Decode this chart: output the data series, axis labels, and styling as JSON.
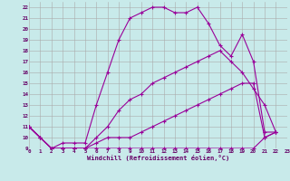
{
  "xlabel": "Windchill (Refroidissement éolien,°C)",
  "bg_color": "#c8eaea",
  "line_color": "#990099",
  "xlim": [
    0,
    23
  ],
  "ylim": [
    9,
    22.5
  ],
  "yticks": [
    9,
    10,
    11,
    12,
    13,
    14,
    15,
    16,
    17,
    18,
    19,
    20,
    21,
    22
  ],
  "xticks": [
    0,
    1,
    2,
    3,
    4,
    5,
    6,
    7,
    8,
    9,
    10,
    11,
    12,
    13,
    14,
    15,
    16,
    17,
    18,
    19,
    20,
    21,
    22,
    23
  ],
  "series": [
    {
      "x": [
        0,
        1,
        2,
        3,
        4,
        5,
        6,
        7,
        8,
        9,
        10,
        11,
        12,
        13,
        14,
        15,
        16,
        17,
        18,
        19,
        20,
        21,
        22
      ],
      "y": [
        11,
        10,
        9,
        9,
        9,
        9,
        9,
        9,
        9,
        9,
        9,
        9,
        9,
        9,
        9,
        9,
        9,
        9,
        9,
        9,
        9,
        10,
        10.5
      ]
    },
    {
      "x": [
        0,
        1,
        2,
        3,
        4,
        5,
        6,
        7,
        8,
        9,
        10,
        11,
        12,
        13,
        14,
        15,
        16,
        17,
        18,
        19,
        20,
        21,
        22
      ],
      "y": [
        11,
        10,
        9,
        9,
        9,
        9,
        9.5,
        10,
        10,
        10,
        10.5,
        11,
        11.5,
        12,
        12.5,
        13,
        13.5,
        14,
        14.5,
        15,
        15,
        10,
        10.5
      ]
    },
    {
      "x": [
        0,
        1,
        2,
        3,
        4,
        5,
        6,
        7,
        8,
        9,
        10,
        11,
        12,
        13,
        14,
        15,
        16,
        17,
        18,
        19,
        20,
        21,
        22
      ],
      "y": [
        11,
        10,
        9,
        9,
        9,
        9,
        10,
        11,
        12.5,
        13.5,
        14,
        15,
        15.5,
        16,
        16.5,
        17,
        17.5,
        18,
        17,
        16,
        14.5,
        13,
        10.5
      ]
    },
    {
      "x": [
        0,
        1,
        2,
        3,
        4,
        5,
        6,
        7,
        8,
        9,
        10,
        11,
        12,
        13,
        14,
        15,
        16,
        17,
        18,
        19,
        20,
        21,
        22
      ],
      "y": [
        11,
        10,
        9,
        9.5,
        9.5,
        9.5,
        13,
        16,
        19,
        21,
        21.5,
        22,
        22,
        21.5,
        21.5,
        22,
        20.5,
        18.5,
        17.5,
        19.5,
        17,
        10.5,
        10.5
      ]
    }
  ]
}
